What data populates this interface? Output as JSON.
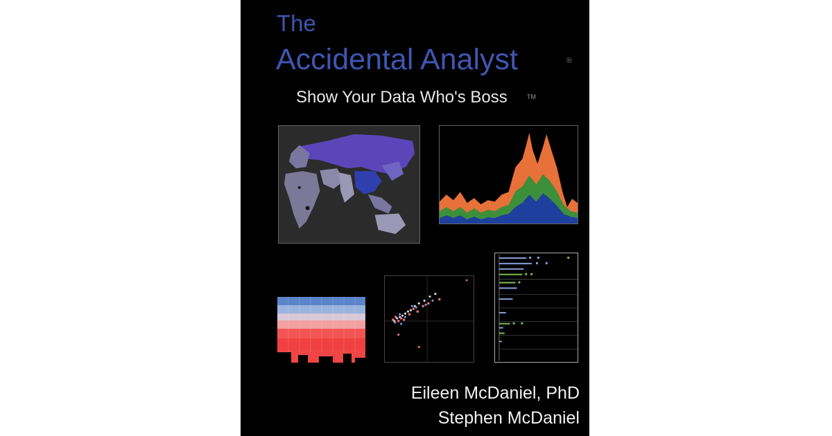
{
  "cover": {
    "title_line1": "The",
    "title_line2": "Accidental Analyst",
    "registered_mark": "®",
    "subtitle": "Show Your Data Who's Boss",
    "trademark": "TM",
    "authors": [
      "Eileen McDaniel, PhD",
      "Stephen McDaniel"
    ]
  },
  "colors": {
    "background": "#000000",
    "title": "#3f56b3",
    "area_orange": "#e8713a",
    "area_green": "#3e8f3a",
    "area_blue": "#1f3f9e",
    "map_purple": "#5a46b8",
    "map_grey": "#8c88a8",
    "heat_blue": "#6d9bd6",
    "heat_red": "#f05050"
  },
  "icons": {
    "map": "world-map-illustration",
    "area": "stacked-area-chart-illustration",
    "heat": "heatmap-illustration",
    "scatter": "scatter-plot-illustration",
    "dots": "dot-plot-illustration"
  }
}
